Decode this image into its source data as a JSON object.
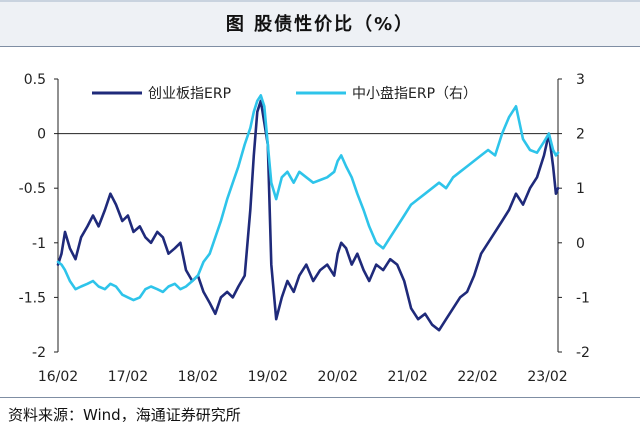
{
  "title": "图  股债性价比（%）",
  "source": "资料来源：Wind，海通证券研究所",
  "chart_data": {
    "type": "line",
    "title": "图  股债性价比（%）",
    "grid": false,
    "legend_position": "top",
    "x_ticks": [
      "16/02",
      "17/02",
      "18/02",
      "19/02",
      "20/02",
      "21/02",
      "22/02",
      "23/02"
    ],
    "x_range": [
      2016.0,
      2023.15
    ],
    "left_axis": {
      "range": [
        -2,
        0.5
      ],
      "ticks": [
        0.5,
        0,
        -0.5,
        -1,
        -1.5,
        -2
      ],
      "tick_labels": [
        "0.5",
        "0",
        "-0.5",
        "-1",
        "-1.5",
        "-2"
      ]
    },
    "right_axis": {
      "range": [
        -2,
        3
      ],
      "ticks": [
        3,
        2,
        1,
        0,
        -1,
        -2
      ],
      "tick_labels": [
        "3",
        "2",
        "1",
        "0",
        "-1",
        "-2"
      ]
    },
    "series": [
      {
        "name": "创业板指ERP",
        "axis": "left",
        "color": "#1f2a7a",
        "x": [
          2016.0,
          2016.05,
          2016.1,
          2016.17,
          2016.25,
          2016.33,
          2016.42,
          2016.5,
          2016.58,
          2016.67,
          2016.75,
          2016.83,
          2016.92,
          2017.0,
          2017.08,
          2017.17,
          2017.25,
          2017.33,
          2017.42,
          2017.5,
          2017.58,
          2017.67,
          2017.75,
          2017.83,
          2017.92,
          2018.0,
          2018.08,
          2018.17,
          2018.25,
          2018.33,
          2018.42,
          2018.5,
          2018.58,
          2018.67,
          2018.75,
          2018.8,
          2018.85,
          2018.9,
          2018.95,
          2019.0,
          2019.05,
          2019.12,
          2019.2,
          2019.28,
          2019.37,
          2019.45,
          2019.55,
          2019.65,
          2019.75,
          2019.85,
          2019.95,
          2020.0,
          2020.05,
          2020.12,
          2020.2,
          2020.28,
          2020.37,
          2020.45,
          2020.55,
          2020.65,
          2020.75,
          2020.85,
          2020.95,
          2021.05,
          2021.15,
          2021.25,
          2021.35,
          2021.45,
          2021.55,
          2021.65,
          2021.75,
          2021.85,
          2021.95,
          2022.05,
          2022.15,
          2022.25,
          2022.35,
          2022.45,
          2022.55,
          2022.65,
          2022.75,
          2022.85,
          2022.95,
          2023.02,
          2023.08,
          2023.12,
          2023.15
        ],
        "values": [
          -1.2,
          -1.1,
          -0.9,
          -1.05,
          -1.15,
          -0.95,
          -0.85,
          -0.75,
          -0.85,
          -0.7,
          -0.55,
          -0.65,
          -0.8,
          -0.75,
          -0.9,
          -0.85,
          -0.95,
          -1.0,
          -0.9,
          -0.95,
          -1.1,
          -1.05,
          -1.0,
          -1.25,
          -1.35,
          -1.3,
          -1.45,
          -1.55,
          -1.65,
          -1.5,
          -1.45,
          -1.5,
          -1.4,
          -1.3,
          -0.7,
          -0.2,
          0.2,
          0.3,
          0.1,
          -0.1,
          -1.2,
          -1.7,
          -1.5,
          -1.35,
          -1.45,
          -1.3,
          -1.2,
          -1.35,
          -1.25,
          -1.2,
          -1.3,
          -1.1,
          -1.0,
          -1.05,
          -1.2,
          -1.1,
          -1.25,
          -1.35,
          -1.2,
          -1.25,
          -1.15,
          -1.2,
          -1.35,
          -1.6,
          -1.7,
          -1.65,
          -1.75,
          -1.8,
          -1.7,
          -1.6,
          -1.5,
          -1.45,
          -1.3,
          -1.1,
          -1.0,
          -0.9,
          -0.8,
          -0.7,
          -0.55,
          -0.65,
          -0.5,
          -0.4,
          -0.2,
          0.0,
          -0.3,
          -0.55,
          -0.5
        ]
      },
      {
        "name": "中小盘指ERP（右）",
        "axis": "right",
        "color": "#2ec4ea",
        "x": [
          2016.0,
          2016.05,
          2016.1,
          2016.17,
          2016.25,
          2016.33,
          2016.42,
          2016.5,
          2016.58,
          2016.67,
          2016.75,
          2016.83,
          2016.92,
          2017.0,
          2017.08,
          2017.17,
          2017.25,
          2017.33,
          2017.42,
          2017.5,
          2017.58,
          2017.67,
          2017.75,
          2017.83,
          2017.92,
          2018.0,
          2018.08,
          2018.17,
          2018.25,
          2018.33,
          2018.42,
          2018.5,
          2018.58,
          2018.67,
          2018.75,
          2018.8,
          2018.85,
          2018.9,
          2018.95,
          2019.0,
          2019.05,
          2019.12,
          2019.2,
          2019.28,
          2019.37,
          2019.45,
          2019.55,
          2019.65,
          2019.75,
          2019.85,
          2019.95,
          2020.0,
          2020.05,
          2020.12,
          2020.2,
          2020.28,
          2020.37,
          2020.45,
          2020.55,
          2020.65,
          2020.75,
          2020.85,
          2020.95,
          2021.05,
          2021.15,
          2021.25,
          2021.35,
          2021.45,
          2021.55,
          2021.65,
          2021.75,
          2021.85,
          2021.95,
          2022.05,
          2022.15,
          2022.25,
          2022.35,
          2022.45,
          2022.55,
          2022.65,
          2022.75,
          2022.85,
          2022.95,
          2023.02,
          2023.08,
          2023.12,
          2023.15
        ],
        "values": [
          -0.35,
          -0.4,
          -0.5,
          -0.7,
          -0.85,
          -0.8,
          -0.75,
          -0.7,
          -0.8,
          -0.85,
          -0.75,
          -0.8,
          -0.95,
          -1.0,
          -1.05,
          -1.0,
          -0.85,
          -0.8,
          -0.85,
          -0.9,
          -0.8,
          -0.75,
          -0.85,
          -0.8,
          -0.7,
          -0.6,
          -0.35,
          -0.2,
          0.1,
          0.4,
          0.8,
          1.1,
          1.4,
          1.8,
          2.1,
          2.4,
          2.6,
          2.7,
          2.5,
          1.8,
          1.1,
          0.8,
          1.2,
          1.3,
          1.1,
          1.3,
          1.2,
          1.1,
          1.15,
          1.2,
          1.3,
          1.5,
          1.6,
          1.4,
          1.2,
          0.9,
          0.6,
          0.3,
          0.0,
          -0.1,
          0.1,
          0.3,
          0.5,
          0.7,
          0.8,
          0.9,
          1.0,
          1.1,
          1.0,
          1.2,
          1.3,
          1.4,
          1.5,
          1.6,
          1.7,
          1.6,
          2.0,
          2.3,
          2.5,
          1.9,
          1.7,
          1.65,
          1.85,
          2.0,
          1.7,
          1.6,
          1.65
        ]
      }
    ]
  }
}
